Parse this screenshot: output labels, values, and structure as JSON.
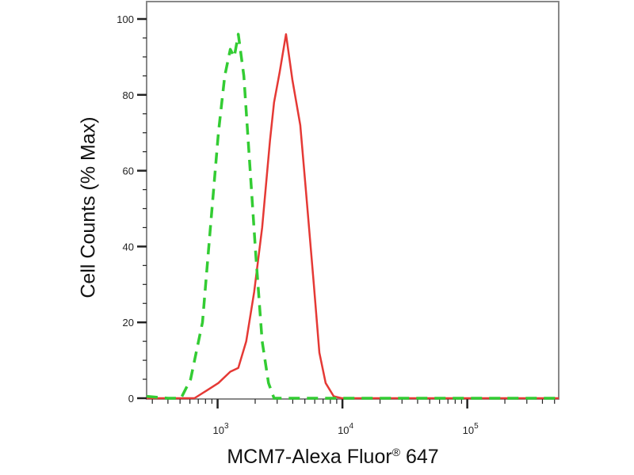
{
  "chart_data": {
    "type": "line",
    "title": "",
    "xlabel_main": "MCM7-Alexa Fluor",
    "xlabel_sup": "®",
    "xlabel_tail": " 647",
    "ylabel": "Cell Counts (% Max)",
    "xscale": "log",
    "xlim": [
      270,
      540000
    ],
    "ylim": [
      0,
      100
    ],
    "yticks": [
      0,
      20,
      40,
      60,
      80,
      100
    ],
    "xticks": [
      {
        "value": 1000,
        "base": "10",
        "exp": "3"
      },
      {
        "value": 10000,
        "base": "10",
        "exp": "4"
      },
      {
        "value": 100000,
        "base": "10",
        "exp": "5"
      }
    ],
    "grid": false,
    "legend": "none",
    "series": [
      {
        "color": "#e53935",
        "style": "solid",
        "x": [
          270,
          653,
          815,
          1015,
          1264,
          1465,
          1695,
          1963,
          2275,
          2630,
          2834,
          3140,
          3532,
          3970,
          4596,
          5093,
          5900,
          6535,
          7340,
          8510,
          9860,
          540000
        ],
        "y": [
          0,
          0,
          2,
          4,
          7,
          8,
          15,
          28,
          45,
          68,
          78,
          86,
          96,
          84,
          72,
          55,
          30,
          12,
          4,
          0.5,
          0,
          0
        ]
      },
      {
        "color": "#33cc33",
        "style": "dashed",
        "x": [
          270,
          400,
          509,
          608,
          757,
          876,
          1015,
          1141,
          1264,
          1360,
          1465,
          1622,
          1825,
          2020,
          2275,
          2555,
          2834,
          540000
        ],
        "y": [
          0.5,
          0,
          0,
          5,
          20,
          45,
          70,
          85,
          92,
          90,
          96,
          85,
          60,
          38,
          15,
          4,
          0,
          0
        ]
      }
    ]
  }
}
